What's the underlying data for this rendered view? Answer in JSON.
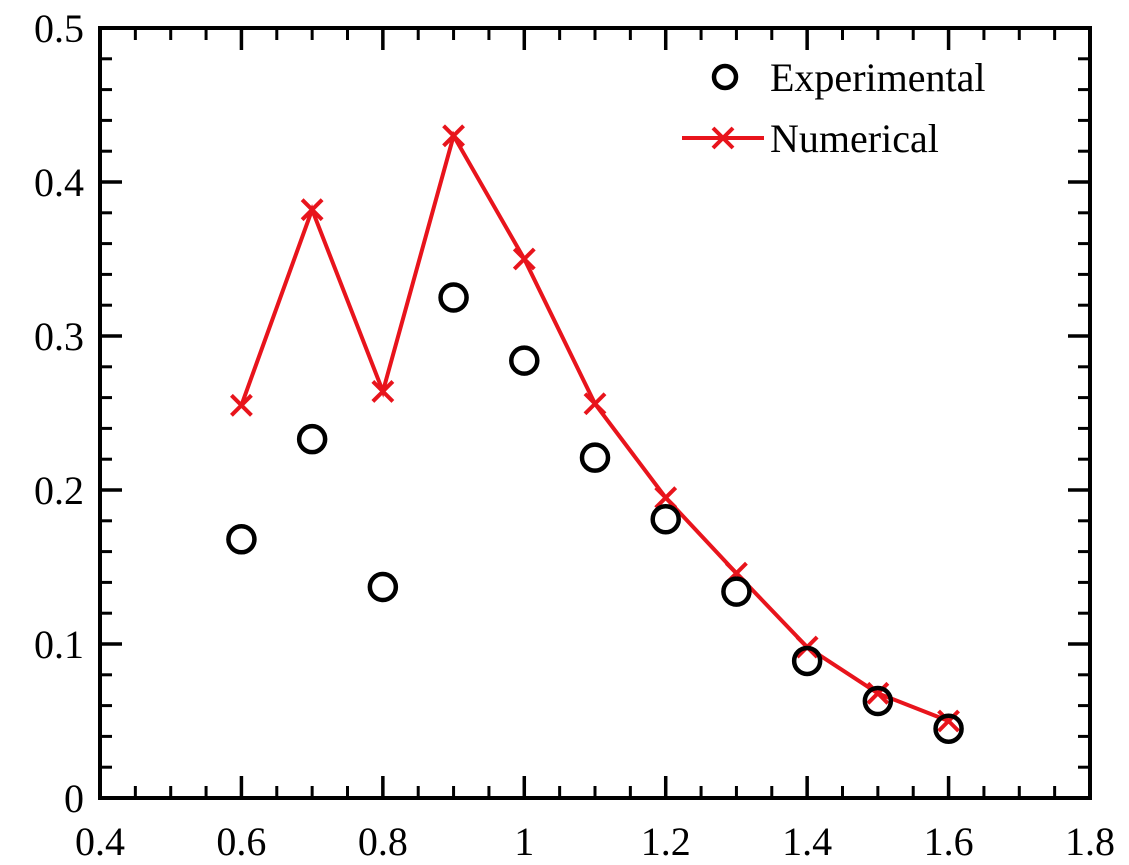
{
  "chart_data": {
    "type": "line",
    "xlim": [
      0.4,
      1.8
    ],
    "ylim": [
      0,
      0.5
    ],
    "x_major_ticks": [
      0.4,
      0.6,
      0.8,
      1.0,
      1.2,
      1.4,
      1.6,
      1.8
    ],
    "x_tick_labels": [
      "0.4",
      "0.6",
      "0.8",
      "1",
      "1.2",
      "1.4",
      "1.6",
      "1.8"
    ],
    "x_minor_step": 0.05,
    "y_major_ticks": [
      0,
      0.1,
      0.2,
      0.3,
      0.4,
      0.5
    ],
    "y_tick_labels": [
      "0",
      "0.1",
      "0.2",
      "0.3",
      "0.4",
      "0.5"
    ],
    "y_minor_step": 0.02,
    "grid": false,
    "legend_position": "top-right",
    "series": [
      {
        "name": "Experimental",
        "style": "scatter",
        "marker": "circle",
        "color": "#000000",
        "x": [
          0.6,
          0.7,
          0.8,
          0.9,
          1.0,
          1.1,
          1.2,
          1.3,
          1.4,
          1.5,
          1.6
        ],
        "y": [
          0.168,
          0.233,
          0.137,
          0.325,
          0.284,
          0.221,
          0.181,
          0.134,
          0.089,
          0.063,
          0.045
        ]
      },
      {
        "name": "Numerical",
        "style": "line",
        "marker": "x",
        "color": "#e8141c",
        "x": [
          0.6,
          0.7,
          0.8,
          0.9,
          1.0,
          1.1,
          1.2,
          1.3,
          1.4,
          1.5,
          1.6
        ],
        "y": [
          0.255,
          0.382,
          0.264,
          0.43,
          0.35,
          0.256,
          0.195,
          0.146,
          0.098,
          0.068,
          0.05
        ]
      }
    ]
  }
}
